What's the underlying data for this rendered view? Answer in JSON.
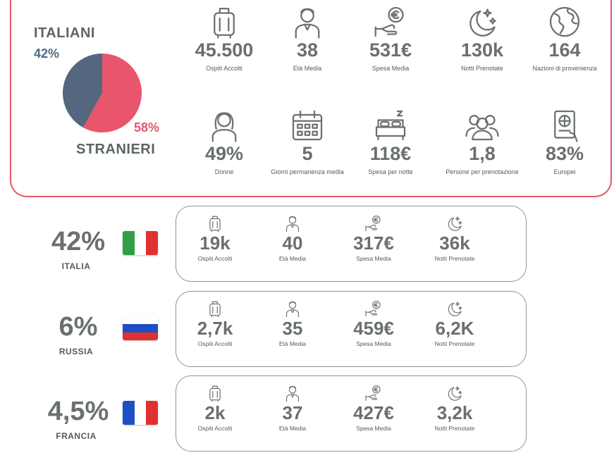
{
  "summary": {
    "italiani_label": "ITALIANI",
    "italiani_pct": "42%",
    "stranieri_label": "STRANIERI",
    "stranieri_pct": "58%",
    "italiani_share": 42,
    "stranieri_share": 58,
    "italiani_color": "#55677f",
    "stranieri_color": "#e8556d"
  },
  "stats": [
    {
      "icon": "luggage-icon",
      "value": "45.500",
      "caption": "Ospiti Accolti"
    },
    {
      "icon": "person-icon",
      "value": "38",
      "caption": "Età Media"
    },
    {
      "icon": "euro-hand-icon",
      "value": "531€",
      "caption": "Spesa Media"
    },
    {
      "icon": "moon-stars-icon",
      "value": "130k",
      "caption": "Notti Prenotate"
    },
    {
      "icon": "globe-icon",
      "value": "164",
      "caption": "Nazioni di provenienza"
    },
    {
      "icon": "woman-icon",
      "value": "49%",
      "caption": "Donne"
    },
    {
      "icon": "calendar-icon",
      "value": "5",
      "caption": "Giorni permanenza media"
    },
    {
      "icon": "bed-icon",
      "value": "118€",
      "caption": "Spesa per notte"
    },
    {
      "icon": "group-icon",
      "value": "1,8",
      "caption": "Persone per prenotazione"
    },
    {
      "icon": "passport-icon",
      "value": "83%",
      "caption": "Europei"
    }
  ],
  "countries": [
    {
      "pct": "42%",
      "name": "ITALIA",
      "flag_colors": [
        "#2f9e44",
        "#ffffff",
        "#e03131"
      ],
      "flag_dir": "vertical",
      "stats": [
        {
          "icon": "luggage-icon",
          "value": "19k",
          "caption": "Ospiti Accolti"
        },
        {
          "icon": "person-icon",
          "value": "40",
          "caption": "Età Media"
        },
        {
          "icon": "euro-hand-icon",
          "value": "317€",
          "caption": "Spesa Media"
        },
        {
          "icon": "moon-stars-icon",
          "value": "36k",
          "caption": "Notti Prenotate"
        }
      ]
    },
    {
      "pct": "6%",
      "name": "RUSSIA",
      "flag_colors": [
        "#ffffff",
        "#1c4fc4",
        "#e03131"
      ],
      "flag_dir": "horizontal",
      "stats": [
        {
          "icon": "luggage-icon",
          "value": "2,7k",
          "caption": "Ospiti Accolti"
        },
        {
          "icon": "person-icon",
          "value": "35",
          "caption": "Età Media"
        },
        {
          "icon": "euro-hand-icon",
          "value": "459€",
          "caption": "Spesa Media"
        },
        {
          "icon": "moon-stars-icon",
          "value": "6,2K",
          "caption": "Notti Prenotate"
        }
      ]
    },
    {
      "pct": "4,5%",
      "name": "FRANCIA",
      "flag_colors": [
        "#1c4fc4",
        "#ffffff",
        "#e03131"
      ],
      "flag_dir": "vertical",
      "stats": [
        {
          "icon": "luggage-icon",
          "value": "2k",
          "caption": "Ospiti Accolti"
        },
        {
          "icon": "person-icon",
          "value": "37",
          "caption": "Età Media"
        },
        {
          "icon": "euro-hand-icon",
          "value": "427€",
          "caption": "Spesa Media"
        },
        {
          "icon": "moon-stars-icon",
          "value": "3,2k",
          "caption": "Notti Prenotate"
        }
      ]
    }
  ]
}
